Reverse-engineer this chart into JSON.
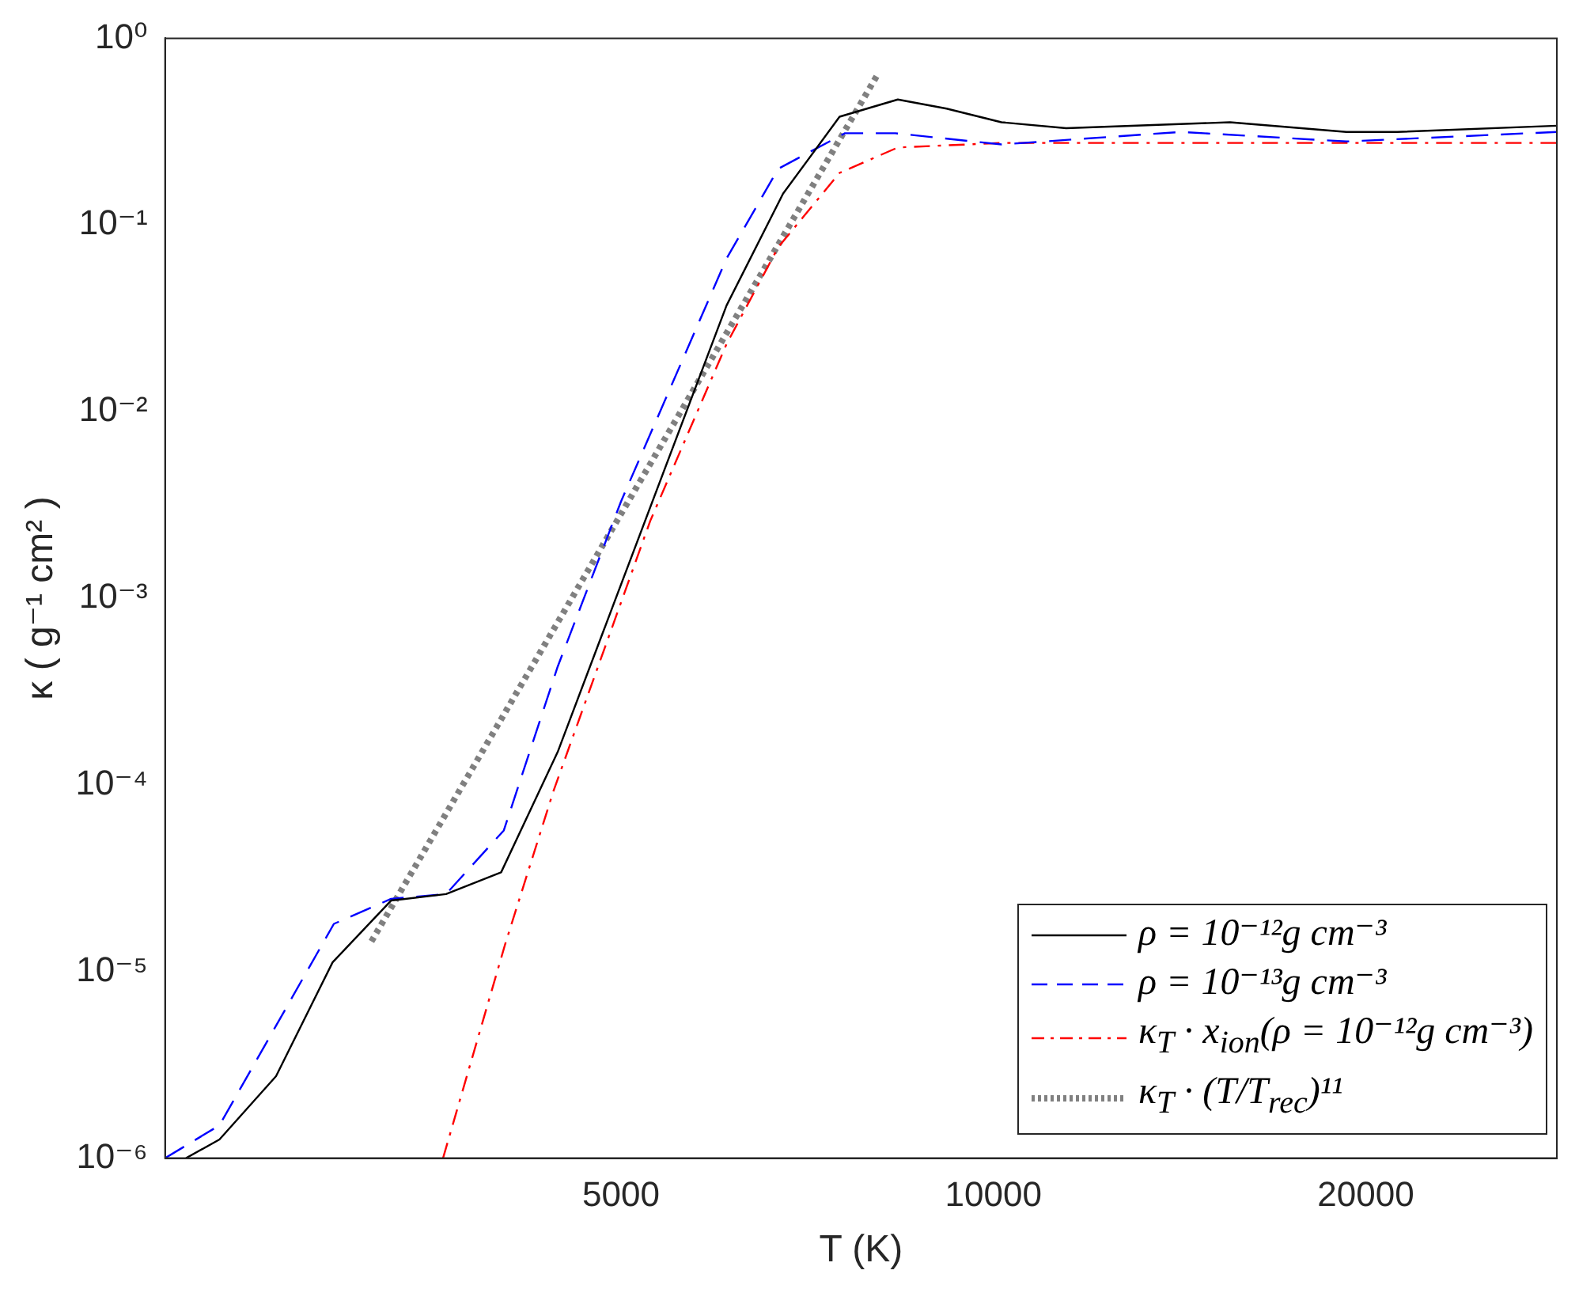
{
  "chart_data": {
    "type": "line",
    "xlabel": "T (K)",
    "ylabel": "κ ( g⁻¹ cm² )",
    "log": "xy",
    "grid": false,
    "legend": "bottom right",
    "marker": "none",
    "xlim": [
      2140,
      28540
    ],
    "xticks": [
      5000,
      10000,
      20000
    ],
    "ylim": [
      1e-06,
      1
    ],
    "yticks": [
      {
        "value": 1e-06,
        "label": "10⁻⁶"
      },
      {
        "value": 1e-05,
        "label": "10⁻⁵"
      },
      {
        "value": 0.0001,
        "label": "10⁻⁴"
      },
      {
        "value": 0.001,
        "label": "10⁻³"
      },
      {
        "value": 0.01,
        "label": "10⁻²"
      },
      {
        "value": 0.1,
        "label": "10⁻¹"
      },
      {
        "value": 1,
        "label": "10⁰"
      }
    ],
    "series": [
      {
        "name": "ρ = 10⁻¹²g cm⁻³",
        "color": "#000000",
        "line_style": "solid",
        "x": [
          2225,
          2368,
          2631,
          2923,
          3259,
          3610,
          4000,
          4444,
          6085,
          6760,
          7510,
          8370,
          9165,
          10150,
          11450,
          15530,
          19290,
          21200,
          28540
        ],
        "values": [
          1e-06,
          1.26e-06,
          2.75e-06,
          1.12e-05,
          2.4e-05,
          2.6e-05,
          3.4e-05,
          0.00015,
          0.037,
          0.147,
          0.38,
          0.47,
          0.42,
          0.355,
          0.33,
          0.355,
          0.315,
          0.315,
          0.34
        ]
      },
      {
        "name": "ρ = 10⁻¹³g cm⁻³",
        "color": "#0000ff",
        "line_style": "dashed",
        "x": [
          2140,
          2368,
          2930,
          3259,
          3610,
          4020,
          4444,
          5000,
          6085,
          6700,
          7585,
          8330,
          10150,
          14180,
          19290,
          28540
        ],
        "values": [
          1e-06,
          1.5e-06,
          1.8e-05,
          2.45e-05,
          2.6e-05,
          5.7e-05,
          0.00043,
          0.0033,
          0.066,
          0.2,
          0.31,
          0.31,
          0.27,
          0.315,
          0.28,
          0.315
        ]
      },
      {
        "name": "κ$_{T}$ · x$_{ion}$(ρ = 10⁻¹²g cm⁻³)",
        "color": "#ff0000",
        "line_style": "dashdot",
        "x": [
          3590,
          4030,
          4410,
          5280,
          6085,
          6700,
          7510,
          8370,
          10150,
          28540
        ],
        "values": [
          1e-06,
          1.4e-05,
          9.3e-05,
          0.0026,
          0.023,
          0.076,
          0.19,
          0.26,
          0.275,
          0.275
        ]
      },
      {
        "name": "κ$_{T}$ · (T/T$_{rec}$)¹¹",
        "color": "#808080",
        "line_style": "dotted",
        "x": [
          3142,
          8050
        ],
        "values": [
          1.45e-05,
          0.63
        ]
      }
    ]
  }
}
